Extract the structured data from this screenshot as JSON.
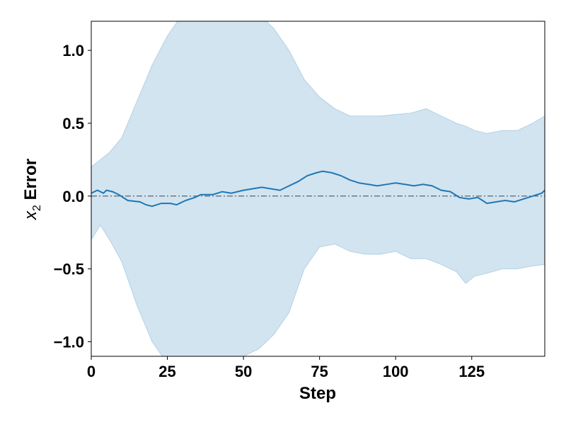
{
  "chart_data": {
    "type": "line",
    "title": "",
    "xlabel": "Step",
    "ylabel": {
      "italic": "x",
      "sub": "2",
      "rest": " Error"
    },
    "xlim": [
      0,
      149
    ],
    "ylim": [
      -1.1,
      1.2
    ],
    "xticks": [
      0,
      25,
      50,
      75,
      100,
      125
    ],
    "xtick_labels": [
      "0",
      "25",
      "50",
      "75",
      "100",
      "125"
    ],
    "yticks": [
      -1.0,
      -0.5,
      0.0,
      0.5,
      1.0
    ],
    "ytick_labels": [
      "−1.0",
      "−0.5",
      "0.0",
      "0.5",
      "1.0"
    ],
    "grid": false,
    "legend": null,
    "reference_line": {
      "y": 0.0,
      "style": "dash-dot",
      "color": "#5a6670"
    },
    "series": [
      {
        "type": "line",
        "color": "#1f77b4",
        "points": [
          [
            0,
            0.02
          ],
          [
            2,
            0.04
          ],
          [
            4,
            0.02
          ],
          [
            5,
            0.04
          ],
          [
            7,
            0.03
          ],
          [
            9,
            0.01
          ],
          [
            12,
            -0.03
          ],
          [
            16,
            -0.04
          ],
          [
            18,
            -0.06
          ],
          [
            20,
            -0.07
          ],
          [
            23,
            -0.05
          ],
          [
            26,
            -0.05
          ],
          [
            28,
            -0.06
          ],
          [
            31,
            -0.03
          ],
          [
            34,
            -0.01
          ],
          [
            36,
            0.01
          ],
          [
            40,
            0.01
          ],
          [
            43,
            0.03
          ],
          [
            46,
            0.02
          ],
          [
            50,
            0.04
          ],
          [
            53,
            0.05
          ],
          [
            56,
            0.06
          ],
          [
            59,
            0.05
          ],
          [
            62,
            0.04
          ],
          [
            65,
            0.07
          ],
          [
            68,
            0.1
          ],
          [
            71,
            0.14
          ],
          [
            74,
            0.16
          ],
          [
            76,
            0.17
          ],
          [
            79,
            0.16
          ],
          [
            82,
            0.14
          ],
          [
            85,
            0.11
          ],
          [
            88,
            0.09
          ],
          [
            91,
            0.08
          ],
          [
            94,
            0.07
          ],
          [
            97,
            0.08
          ],
          [
            100,
            0.09
          ],
          [
            103,
            0.08
          ],
          [
            106,
            0.07
          ],
          [
            109,
            0.08
          ],
          [
            112,
            0.07
          ],
          [
            115,
            0.04
          ],
          [
            118,
            0.03
          ],
          [
            121,
            -0.01
          ],
          [
            124,
            -0.02
          ],
          [
            127,
            -0.01
          ],
          [
            130,
            -0.05
          ],
          [
            133,
            -0.04
          ],
          [
            136,
            -0.03
          ],
          [
            139,
            -0.04
          ],
          [
            142,
            -0.02
          ],
          [
            145,
            0.0
          ],
          [
            148,
            0.02
          ],
          [
            149,
            0.04
          ]
        ]
      },
      {
        "type": "band",
        "color": "#1f77b4",
        "opacity": 0.2,
        "points": [
          [
            0,
            -0.3,
            0.2
          ],
          [
            3,
            -0.2,
            0.25
          ],
          [
            6,
            -0.3,
            0.3
          ],
          [
            10,
            -0.45,
            0.4
          ],
          [
            15,
            -0.75,
            0.65
          ],
          [
            20,
            -1.0,
            0.9
          ],
          [
            25,
            -1.15,
            1.1
          ],
          [
            30,
            -1.25,
            1.25
          ],
          [
            35,
            -1.25,
            1.3
          ],
          [
            40,
            -1.25,
            1.3
          ],
          [
            45,
            -1.2,
            1.3
          ],
          [
            50,
            -1.1,
            1.3
          ],
          [
            55,
            -1.05,
            1.25
          ],
          [
            60,
            -0.95,
            1.15
          ],
          [
            65,
            -0.8,
            1.0
          ],
          [
            70,
            -0.5,
            0.8
          ],
          [
            75,
            -0.35,
            0.68
          ],
          [
            80,
            -0.33,
            0.6
          ],
          [
            85,
            -0.38,
            0.55
          ],
          [
            90,
            -0.4,
            0.55
          ],
          [
            95,
            -0.4,
            0.55
          ],
          [
            100,
            -0.38,
            0.56
          ],
          [
            105,
            -0.43,
            0.57
          ],
          [
            110,
            -0.43,
            0.6
          ],
          [
            115,
            -0.47,
            0.55
          ],
          [
            120,
            -0.52,
            0.5
          ],
          [
            123,
            -0.6,
            0.48
          ],
          [
            126,
            -0.55,
            0.45
          ],
          [
            130,
            -0.53,
            0.43
          ],
          [
            135,
            -0.5,
            0.45
          ],
          [
            140,
            -0.5,
            0.45
          ],
          [
            145,
            -0.48,
            0.5
          ],
          [
            149,
            -0.47,
            0.55
          ]
        ]
      }
    ]
  }
}
